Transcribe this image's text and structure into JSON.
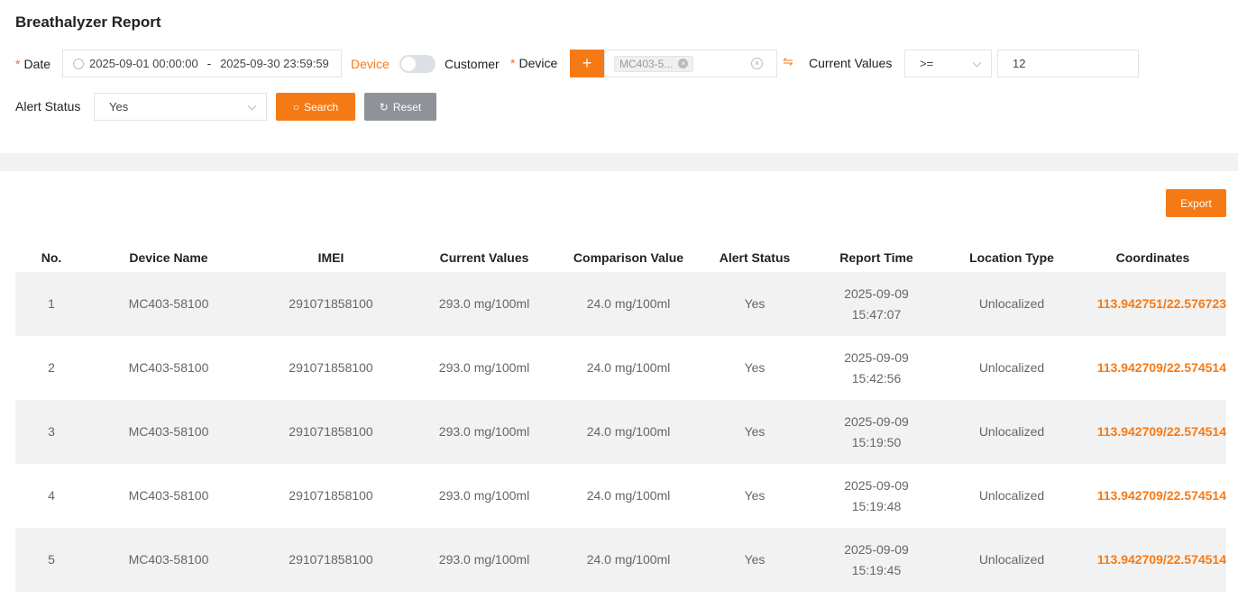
{
  "title": "Breathalyzer Report",
  "filters": {
    "date_label": "Date",
    "date_start": "2025-09-01 00:00:00",
    "date_sep": "-",
    "date_end": "2025-09-30 23:59:59",
    "toggle_left": "Device",
    "toggle_right": "Customer",
    "device_label": "Device",
    "add_label": "+",
    "device_tag": "MC403-5...",
    "current_values_label": "Current Values",
    "operator": ">=",
    "value": "12",
    "alert_status_label": "Alert Status",
    "alert_status_value": "Yes",
    "search_label": "Search",
    "reset_label": "Reset"
  },
  "export_label": "Export",
  "accent": "#f57a16",
  "table": {
    "headers": [
      "No.",
      "Device Name",
      "IMEI",
      "Current Values",
      "Comparison Value",
      "Alert Status",
      "Report Time",
      "Location Type",
      "Coordinates"
    ],
    "rows": [
      [
        "1",
        "MC403-58100",
        "291071858100",
        "293.0 mg/100ml",
        "24.0 mg/100ml",
        "Yes",
        "2025-09-09",
        "15:47:07",
        "Unlocalized",
        "113.942751/22.576723"
      ],
      [
        "2",
        "MC403-58100",
        "291071858100",
        "293.0 mg/100ml",
        "24.0 mg/100ml",
        "Yes",
        "2025-09-09",
        "15:42:56",
        "Unlocalized",
        "113.942709/22.574514"
      ],
      [
        "3",
        "MC403-58100",
        "291071858100",
        "293.0 mg/100ml",
        "24.0 mg/100ml",
        "Yes",
        "2025-09-09",
        "15:19:50",
        "Unlocalized",
        "113.942709/22.574514"
      ],
      [
        "4",
        "MC403-58100",
        "291071858100",
        "293.0 mg/100ml",
        "24.0 mg/100ml",
        "Yes",
        "2025-09-09",
        "15:19:48",
        "Unlocalized",
        "113.942709/22.574514"
      ],
      [
        "5",
        "MC403-58100",
        "291071858100",
        "293.0 mg/100ml",
        "24.0 mg/100ml",
        "Yes",
        "2025-09-09",
        "15:19:45",
        "Unlocalized",
        "113.942709/22.574514"
      ]
    ]
  }
}
